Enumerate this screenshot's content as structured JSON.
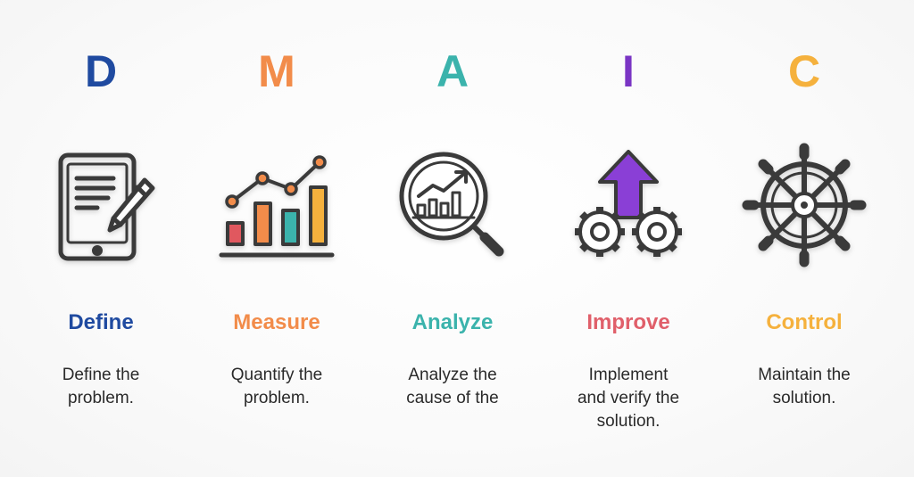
{
  "stages": [
    {
      "letter": "D",
      "name": "Define",
      "desc_lines": [
        "Define the",
        "problem."
      ],
      "color": "#1f4aa0",
      "icon": "tablet-pencil-icon"
    },
    {
      "letter": "M",
      "name": "Measure",
      "desc_lines": [
        "Quantify the",
        "problem."
      ],
      "color": "#f28c4a",
      "icon": "bar-chart-icon"
    },
    {
      "letter": "A",
      "name": "Analyze",
      "desc_lines": [
        "Analyze the",
        "cause of the"
      ],
      "color": "#3bb3ac",
      "icon": "magnifier-chart-icon"
    },
    {
      "letter": "I",
      "name": "Improve",
      "desc_lines": [
        "Implement",
        "and verify the",
        "solution."
      ],
      "color": "#7a35c4",
      "name_color": "#e05f6a",
      "icon": "gears-arrow-icon"
    },
    {
      "letter": "C",
      "name": "Control",
      "desc_lines": [
        "Maintain the",
        "solution."
      ],
      "color": "#f5b13d",
      "icon": "ship-wheel-icon"
    }
  ],
  "colors": {
    "icon_stroke": "#3a3a3a",
    "bar_red": "#e0585f",
    "bar_orange": "#f28c4a",
    "bar_teal": "#3bb3ac",
    "bar_yellow": "#f5b13d",
    "arrow_purple": "#8a3fd6"
  }
}
